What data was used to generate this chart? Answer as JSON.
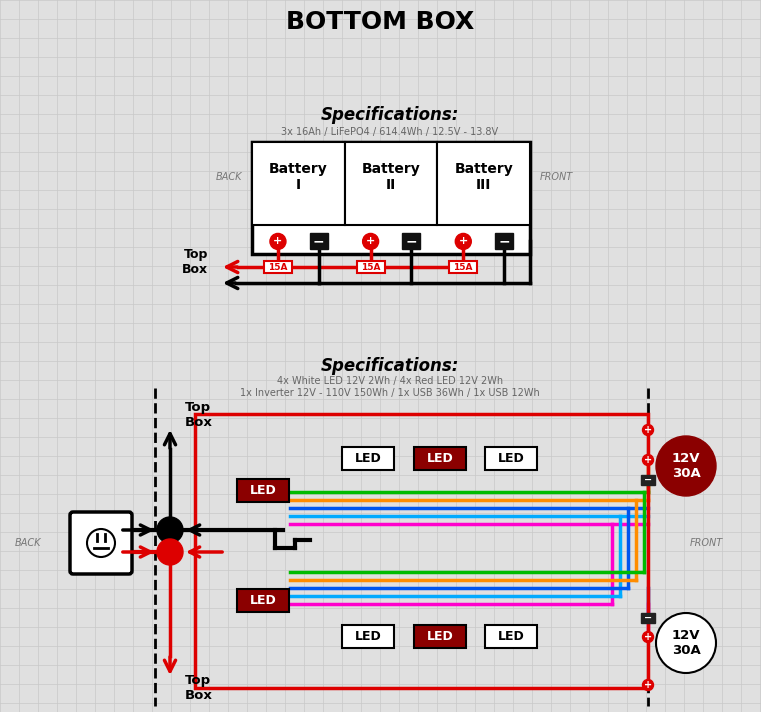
{
  "title": "BOTTOM BOX",
  "bg_color": "#e0e0e0",
  "grid_color": "#c8c8c8",
  "spec1_title": "Specifications:",
  "spec1_sub": "3x 16Ah / LiFePO4 / 614.4Wh / 12.5V - 13.8V",
  "spec2_title": "Specifications:",
  "spec2_sub1": "4x White LED 12V 2Wh / 4x Red LED 12V 2Wh",
  "spec2_sub2": "1x Inverter 12V - 110V 150Wh / 1x USB 36Wh / 1x USB 12Wh",
  "battery_labels": [
    "Battery\nI",
    "Battery\nII",
    "Battery\nIII"
  ],
  "back_label": "BACK",
  "front_label": "FRONT",
  "top_box_label": "Top\nBox",
  "fuse_label": "15A",
  "led_label": "LED",
  "v12_30a_top": "12V\n30A",
  "v12_30a_bot": "12V\n30A",
  "red": "#dd0000",
  "dark_red": "#8b0000",
  "orange": "#ff8c00",
  "green": "#00bb00",
  "blue": "#0055ee",
  "cyan": "#00aaff",
  "magenta": "#ff00cc",
  "black": "#000000",
  "white": "#ffffff",
  "gray": "#888888"
}
